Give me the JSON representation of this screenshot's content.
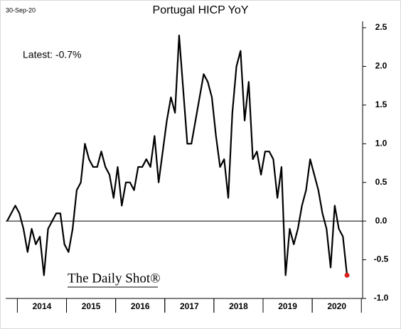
{
  "chart_data": {
    "type": "line",
    "title": "Portugal HICP YoY",
    "date_label": "30-Sep-20",
    "annotation": "Latest:  -0.7%",
    "logo": "The Daily Shot®",
    "categories": [
      null,
      null,
      null,
      null,
      null,
      null,
      null,
      null,
      null,
      "2014",
      null,
      null,
      null,
      null,
      null,
      null,
      null,
      null,
      null,
      null,
      null,
      "2015",
      null,
      null,
      null,
      null,
      null,
      null,
      null,
      null,
      null,
      null,
      null,
      "2016",
      null,
      null,
      null,
      null,
      null,
      null,
      null,
      null,
      null,
      null,
      null,
      "2017",
      null,
      null,
      null,
      null,
      null,
      null,
      null,
      null,
      null,
      null,
      null,
      "2018",
      null,
      null,
      null,
      null,
      null,
      null,
      null,
      null,
      null,
      null,
      null,
      "2019",
      null,
      null,
      null,
      null,
      null,
      null,
      null,
      null,
      null,
      null,
      null,
      "2020",
      null,
      null
    ],
    "series": [
      {
        "name": "Portugal HICP YoY",
        "color": "#000000",
        "values": [
          0.0,
          0.1,
          0.2,
          0.1,
          -0.1,
          -0.4,
          -0.1,
          -0.3,
          -0.2,
          -0.7,
          -0.1,
          0.0,
          0.1,
          0.1,
          -0.3,
          -0.4,
          -0.1,
          0.4,
          0.5,
          1.0,
          0.8,
          0.7,
          0.7,
          0.9,
          0.7,
          0.6,
          0.3,
          0.7,
          0.2,
          0.5,
          0.5,
          0.4,
          0.7,
          0.7,
          0.8,
          0.7,
          1.1,
          0.5,
          0.9,
          1.3,
          1.6,
          1.4,
          2.4,
          1.7,
          1.0,
          1.0,
          1.3,
          1.6,
          1.9,
          1.8,
          1.6,
          1.1,
          0.7,
          0.8,
          0.3,
          1.4,
          2.0,
          2.2,
          1.3,
          1.8,
          0.8,
          0.9,
          0.6,
          0.9,
          0.9,
          0.8,
          0.3,
          0.7,
          -0.7,
          -0.1,
          -0.3,
          -0.1,
          0.2,
          0.4,
          0.8,
          0.6,
          0.4,
          0.1,
          -0.1,
          -0.6,
          0.2,
          -0.1,
          -0.2,
          -0.7
        ]
      }
    ],
    "last_point_color": "#e0201b",
    "ylim": [
      -1.0,
      2.5
    ],
    "yticks": [
      {
        "value": -1,
        "label": "-1.0"
      },
      -0.5,
      {
        "value": 0,
        "label": "0.0"
      },
      0.5,
      {
        "value": 1,
        "label": "1.0"
      },
      1.5,
      {
        "value": 2,
        "label": "2.0"
      },
      2.5
    ]
  }
}
